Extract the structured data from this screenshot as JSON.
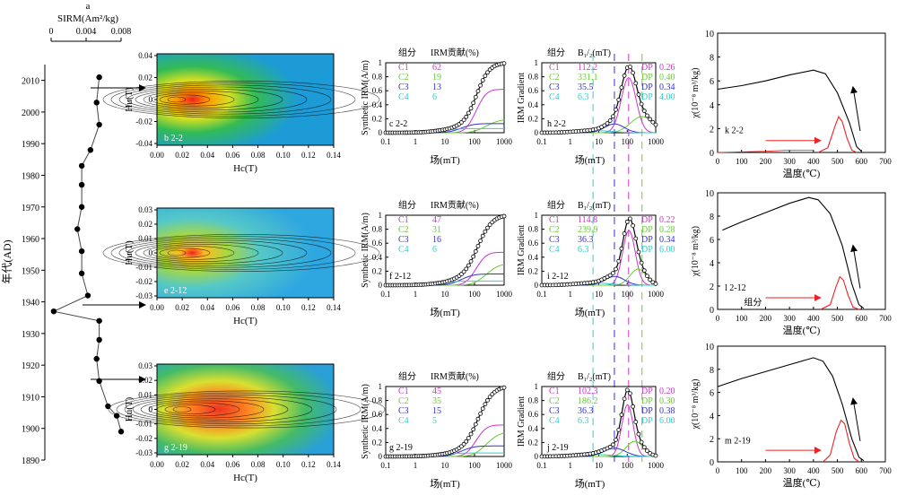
{
  "colors": {
    "c1": "#cc33cc",
    "c2": "#66cc33",
    "c3": "#3333cc",
    "c4": "#33cccc",
    "red": "#ee2222",
    "black": "#000000"
  },
  "chart_data": [
    {
      "type": "line",
      "panel_label": "a",
      "xlabel": "SIRM(Am²/kg)",
      "ylabel": "年代(AD)",
      "xticks": [
        "0",
        "0.004",
        "0.008"
      ],
      "xlim": [
        0,
        0.008
      ],
      "ylim": [
        1890,
        2015
      ],
      "yticks": [
        1890,
        1900,
        1910,
        1920,
        1930,
        1940,
        1950,
        1960,
        1970,
        1980,
        1990,
        2000,
        2010
      ],
      "points": [
        {
          "x": 0.0055,
          "y": 2011
        },
        {
          "x": 0.0052,
          "y": 2003
        },
        {
          "x": 0.0055,
          "y": 1996
        },
        {
          "x": 0.0045,
          "y": 1988
        },
        {
          "x": 0.0035,
          "y": 1983
        },
        {
          "x": 0.0035,
          "y": 1977
        },
        {
          "x": 0.0035,
          "y": 1970
        },
        {
          "x": 0.003,
          "y": 1963
        },
        {
          "x": 0.0035,
          "y": 1956
        },
        {
          "x": 0.0035,
          "y": 1949
        },
        {
          "x": 0.0042,
          "y": 1942
        },
        {
          "x": 0.0003,
          "y": 1937
        },
        {
          "x": 0.0055,
          "y": 1934
        },
        {
          "x": 0.0055,
          "y": 1928
        },
        {
          "x": 0.0052,
          "y": 1922
        },
        {
          "x": 0.0055,
          "y": 1915
        },
        {
          "x": 0.0065,
          "y": 1907
        },
        {
          "x": 0.0075,
          "y": 1904
        },
        {
          "x": 0.008,
          "y": 1899
        }
      ]
    },
    {
      "type": "heatmap",
      "rows": [
        {
          "label": "b 2-2",
          "yticks": [
            "0.04",
            "0.02",
            "0",
            "-0.02",
            "-0.04"
          ]
        },
        {
          "label": "e 2-12",
          "yticks": [
            "0.03",
            "0.02",
            "0.01",
            "0",
            "-0.01",
            "-0.02",
            "-0.03"
          ]
        },
        {
          "label": "g 2-19",
          "yticks": [
            "0.03",
            "0.02",
            "0.01",
            "0",
            "-0.01",
            "-0.02",
            "-0.03"
          ]
        }
      ],
      "xticks": [
        "0.00",
        "0.02",
        "0.04",
        "0.06",
        "0.08",
        "0.10",
        "0.12",
        "0.14"
      ],
      "xlabel": "Hc(T)",
      "ylabel": "Hu(T)"
    },
    {
      "type": "line",
      "ylabel": "Synthetic IRM(A/m)",
      "xlabel": "场(mT)",
      "yticks": [
        "0",
        "0.2",
        "0.4",
        "0.6",
        "0.8",
        "1"
      ],
      "xticks": [
        "0.1",
        "1",
        "10",
        "100",
        "1000"
      ],
      "table_headers": [
        "组分",
        "IRM贡献(%)"
      ],
      "components": [
        "C1",
        "C2",
        "C3",
        "C4"
      ],
      "rows": [
        {
          "label": "c 2-2",
          "values": [
            "62",
            "19",
            "13",
            "6"
          ],
          "final": [
            0.62,
            0.19,
            0.13,
            0.06
          ]
        },
        {
          "label": "f 2-12",
          "values": [
            "47",
            "31",
            "16",
            "6"
          ],
          "final": [
            0.47,
            0.31,
            0.16,
            0.06
          ]
        },
        {
          "label": "g 2-19",
          "values": [
            "45",
            "35",
            "15",
            "5"
          ],
          "final": [
            0.45,
            0.35,
            0.15,
            0.05
          ]
        }
      ]
    },
    {
      "type": "line",
      "ylabel": "IRM Gradient",
      "xlabel": "场(mT)",
      "yticks": [
        "0",
        "0.2",
        "0.4",
        "0.6",
        "0.8",
        "1"
      ],
      "xticks": [
        "0.1",
        "1",
        "10",
        "100",
        "1000"
      ],
      "table_headers": [
        "组分",
        "B₁/₂(mT)",
        "DP"
      ],
      "components": [
        "C1",
        "C2",
        "C3",
        "C4"
      ],
      "rows": [
        {
          "label": "h 2-2",
          "b12": [
            "112.2",
            "331.1",
            "35.5",
            "6.3"
          ],
          "dp": [
            "0.26",
            "0.40",
            "0.34",
            "4.00"
          ]
        },
        {
          "label": "i 2-12",
          "b12": [
            "114.8",
            "239.9",
            "36.3",
            "6.3"
          ],
          "dp": [
            "0.22",
            "0.28",
            "0.34",
            "6.00"
          ]
        },
        {
          "label": "j 2-19",
          "b12": [
            "102.3",
            "186.2",
            "36.3",
            "6.3"
          ],
          "dp": [
            "0.20",
            "0.30",
            "0.38",
            "6.00"
          ]
        }
      ]
    },
    {
      "type": "line",
      "ylabel": "χ(10⁻⁸ m³/kg)",
      "xlabel": "温度(℃)",
      "xticks": [
        "0",
        "100",
        "200",
        "300",
        "400",
        "500",
        "600",
        "700"
      ],
      "yticks": [
        "0",
        "2",
        "4",
        "6",
        "8",
        "10"
      ],
      "xlim": [
        0,
        700
      ],
      "ylim": [
        0,
        10
      ],
      "rows": [
        {
          "label": "k 2-2",
          "heating": [
            [
              0,
              5.3
            ],
            [
              100,
              5.6
            ],
            [
              200,
              6.0
            ],
            [
              300,
              6.5
            ],
            [
              400,
              6.9
            ],
            [
              450,
              6.6
            ],
            [
              500,
              5.0
            ],
            [
              550,
              2.5
            ],
            [
              580,
              0.5
            ],
            [
              600,
              0.1
            ]
          ],
          "cooling": [
            [
              420,
              0
            ],
            [
              460,
              0.4
            ],
            [
              490,
              2.2
            ],
            [
              505,
              3.0
            ],
            [
              520,
              2.6
            ],
            [
              540,
              1.2
            ],
            [
              560,
              0.2
            ],
            [
              580,
              0
            ]
          ],
          "cooling_extra": [
            [
              0,
              0
            ],
            [
              200,
              0.1
            ],
            [
              300,
              0.2
            ],
            [
              400,
              0.2
            ]
          ]
        },
        {
          "label": "l 2-12",
          "note": "组分",
          "heating": [
            [
              20,
              6.8
            ],
            [
              100,
              7.5
            ],
            [
              200,
              8.3
            ],
            [
              300,
              9.1
            ],
            [
              380,
              9.6
            ],
            [
              420,
              9.4
            ],
            [
              470,
              8.2
            ],
            [
              520,
              5.5
            ],
            [
              560,
              2.2
            ],
            [
              590,
              0.4
            ],
            [
              610,
              0.1
            ]
          ],
          "cooling": [
            [
              430,
              0
            ],
            [
              470,
              0.4
            ],
            [
              495,
              2.0
            ],
            [
              510,
              2.8
            ],
            [
              525,
              2.5
            ],
            [
              545,
              1.2
            ],
            [
              565,
              0.2
            ],
            [
              590,
              0
            ]
          ]
        },
        {
          "label": "m 2-19",
          "heating": [
            [
              0,
              6.5
            ],
            [
              100,
              7.2
            ],
            [
              200,
              7.8
            ],
            [
              300,
              8.4
            ],
            [
              400,
              9.0
            ],
            [
              440,
              8.7
            ],
            [
              480,
              7.4
            ],
            [
              520,
              5.0
            ],
            [
              560,
              2.0
            ],
            [
              590,
              0.4
            ],
            [
              610,
              0.1
            ]
          ],
          "cooling": [
            [
              440,
              0
            ],
            [
              470,
              0.6
            ],
            [
              495,
              2.6
            ],
            [
              515,
              3.6
            ],
            [
              530,
              3.3
            ],
            [
              550,
              1.6
            ],
            [
              570,
              0.3
            ],
            [
              590,
              0
            ]
          ]
        }
      ]
    }
  ]
}
